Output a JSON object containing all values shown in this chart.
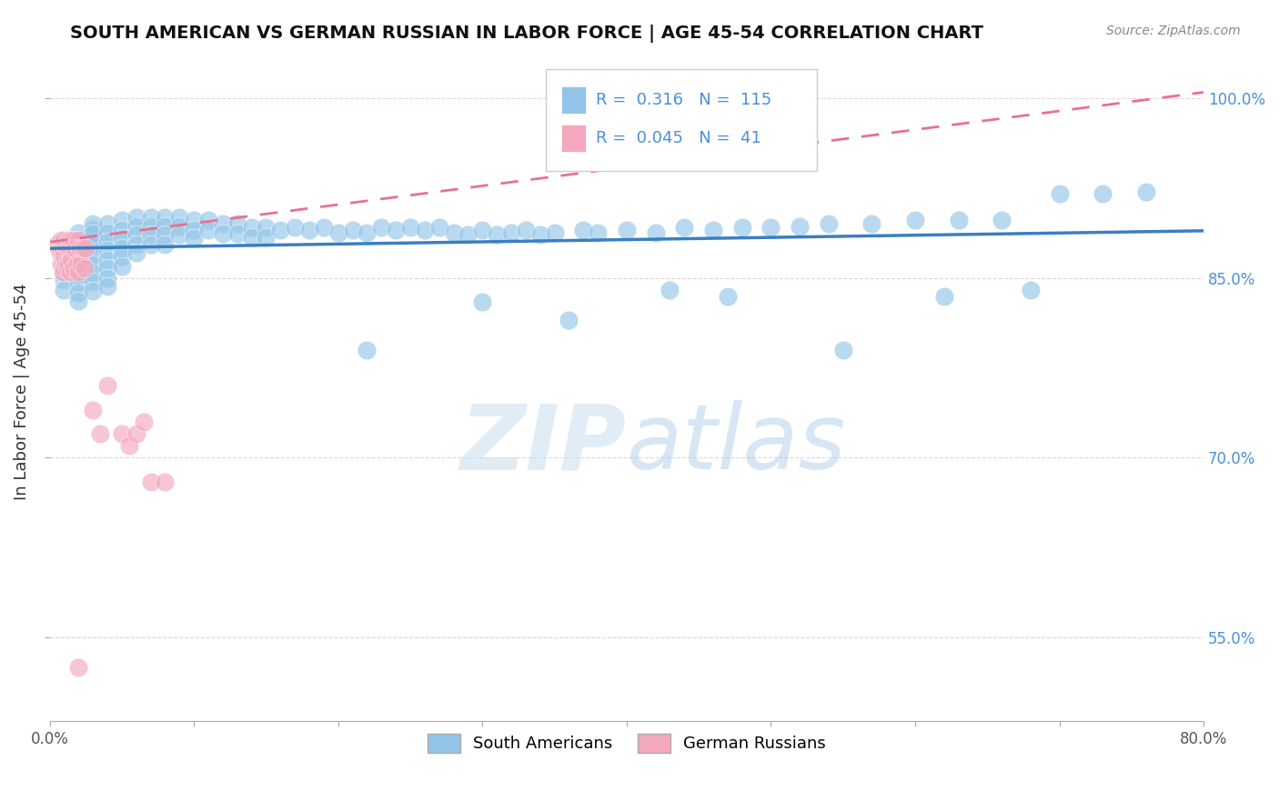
{
  "title": "SOUTH AMERICAN VS GERMAN RUSSIAN IN LABOR FORCE | AGE 45-54 CORRELATION CHART",
  "source": "Source: ZipAtlas.com",
  "ylabel": "In Labor Force | Age 45-54",
  "xlim": [
    0.0,
    0.8
  ],
  "ylim": [
    0.48,
    1.03
  ],
  "xtick_positions": [
    0.0,
    0.1,
    0.2,
    0.3,
    0.4,
    0.5,
    0.6,
    0.7,
    0.8
  ],
  "ytick_positions": [
    0.55,
    0.7,
    0.85,
    1.0
  ],
  "ytick_labels": [
    "55.0%",
    "70.0%",
    "85.0%",
    "100.0%"
  ],
  "blue_R": 0.316,
  "blue_N": 115,
  "pink_R": 0.045,
  "pink_N": 41,
  "blue_color": "#92C5E8",
  "pink_color": "#F4A8BE",
  "blue_line_color": "#3A7FC1",
  "pink_line_color": "#E87090",
  "grid_color": "#DDDDDD",
  "legend_label_blue": "South Americans",
  "legend_label_pink": "German Russians",
  "blue_scatter_x": [
    0.01,
    0.01,
    0.01,
    0.01,
    0.01,
    0.02,
    0.02,
    0.02,
    0.02,
    0.02,
    0.02,
    0.02,
    0.02,
    0.02,
    0.02,
    0.02,
    0.02,
    0.03,
    0.03,
    0.03,
    0.03,
    0.03,
    0.03,
    0.03,
    0.03,
    0.03,
    0.03,
    0.04,
    0.04,
    0.04,
    0.04,
    0.04,
    0.04,
    0.04,
    0.04,
    0.05,
    0.05,
    0.05,
    0.05,
    0.05,
    0.05,
    0.06,
    0.06,
    0.06,
    0.06,
    0.06,
    0.07,
    0.07,
    0.07,
    0.07,
    0.08,
    0.08,
    0.08,
    0.08,
    0.09,
    0.09,
    0.09,
    0.1,
    0.1,
    0.1,
    0.11,
    0.11,
    0.12,
    0.12,
    0.13,
    0.13,
    0.14,
    0.14,
    0.15,
    0.15,
    0.16,
    0.17,
    0.18,
    0.19,
    0.2,
    0.21,
    0.22,
    0.23,
    0.24,
    0.25,
    0.26,
    0.27,
    0.28,
    0.29,
    0.3,
    0.31,
    0.32,
    0.33,
    0.34,
    0.35,
    0.37,
    0.38,
    0.4,
    0.42,
    0.44,
    0.46,
    0.48,
    0.5,
    0.52,
    0.54,
    0.57,
    0.6,
    0.63,
    0.66,
    0.7,
    0.73,
    0.76,
    0.22,
    0.3,
    0.36,
    0.43,
    0.47,
    0.55,
    0.62,
    0.68
  ],
  "blue_scatter_y": [
    0.87,
    0.862,
    0.855,
    0.848,
    0.84,
    0.882,
    0.875,
    0.868,
    0.86,
    0.853,
    0.846,
    0.838,
    0.831,
    0.888,
    0.88,
    0.873,
    0.866,
    0.891,
    0.883,
    0.876,
    0.869,
    0.861,
    0.854,
    0.847,
    0.839,
    0.895,
    0.887,
    0.895,
    0.888,
    0.88,
    0.873,
    0.865,
    0.858,
    0.85,
    0.843,
    0.898,
    0.89,
    0.883,
    0.875,
    0.868,
    0.86,
    0.901,
    0.893,
    0.886,
    0.878,
    0.871,
    0.901,
    0.893,
    0.886,
    0.878,
    0.901,
    0.893,
    0.886,
    0.878,
    0.901,
    0.893,
    0.886,
    0.898,
    0.89,
    0.883,
    0.898,
    0.89,
    0.895,
    0.887,
    0.895,
    0.887,
    0.892,
    0.884,
    0.892,
    0.884,
    0.89,
    0.892,
    0.89,
    0.892,
    0.888,
    0.89,
    0.888,
    0.892,
    0.89,
    0.892,
    0.89,
    0.892,
    0.888,
    0.886,
    0.89,
    0.886,
    0.888,
    0.89,
    0.886,
    0.888,
    0.89,
    0.888,
    0.89,
    0.888,
    0.892,
    0.89,
    0.892,
    0.892,
    0.893,
    0.895,
    0.895,
    0.898,
    0.898,
    0.898,
    0.92,
    0.92,
    0.922,
    0.79,
    0.83,
    0.815,
    0.84,
    0.835,
    0.79,
    0.835,
    0.84
  ],
  "pink_scatter_x": [
    0.005,
    0.007,
    0.008,
    0.008,
    0.009,
    0.009,
    0.01,
    0.01,
    0.01,
    0.011,
    0.011,
    0.012,
    0.012,
    0.013,
    0.013,
    0.014,
    0.014,
    0.015,
    0.015,
    0.016,
    0.017,
    0.017,
    0.018,
    0.019,
    0.02,
    0.02,
    0.021,
    0.022,
    0.023,
    0.024,
    0.025,
    0.03,
    0.035,
    0.04,
    0.05,
    0.055,
    0.06,
    0.065,
    0.07,
    0.08,
    0.02
  ],
  "pink_scatter_y": [
    0.878,
    0.871,
    0.882,
    0.862,
    0.875,
    0.855,
    0.882,
    0.868,
    0.858,
    0.878,
    0.862,
    0.875,
    0.858,
    0.882,
    0.862,
    0.875,
    0.855,
    0.882,
    0.865,
    0.875,
    0.882,
    0.858,
    0.875,
    0.862,
    0.882,
    0.855,
    0.875,
    0.862,
    0.875,
    0.858,
    0.875,
    0.74,
    0.72,
    0.76,
    0.72,
    0.71,
    0.72,
    0.73,
    0.68,
    0.68,
    0.525
  ]
}
